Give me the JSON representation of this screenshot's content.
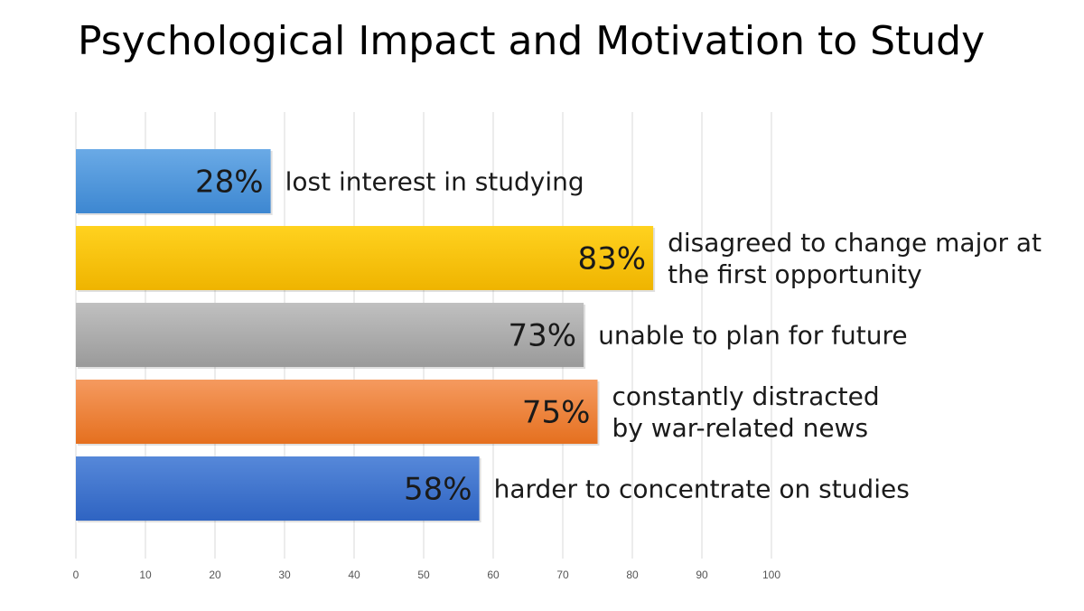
{
  "chart_data": {
    "type": "bar",
    "orientation": "horizontal",
    "title": "Psychological Impact and Motivation to Study",
    "xlim": [
      0,
      100
    ],
    "xticks": [
      0,
      10,
      20,
      30,
      40,
      50,
      60,
      70,
      80,
      90,
      100
    ],
    "grid": true,
    "bars": [
      {
        "value": 28,
        "label": "28%",
        "annotation": [
          "lost interest in studying"
        ],
        "color_top": "#6aaae6",
        "color_bottom": "#3d87d1"
      },
      {
        "value": 83,
        "label": "83%",
        "annotation": [
          "disagreed to change major at",
          "the first opportunity"
        ],
        "color_top": "#ffd21f",
        "color_bottom": "#efb400"
      },
      {
        "value": 73,
        "label": "73%",
        "annotation": [
          "unable to plan for future"
        ],
        "color_top": "#c0c0c0",
        "color_bottom": "#9a9a9a"
      },
      {
        "value": 75,
        "label": "75%",
        "annotation": [
          "constantly distracted",
          "by war-related news"
        ],
        "color_top": "#f59a5f",
        "color_bottom": "#e5701f"
      },
      {
        "value": 58,
        "label": "58%",
        "annotation": [
          "harder to concentrate on studies"
        ],
        "color_top": "#5688d9",
        "color_bottom": "#2f64c2"
      }
    ]
  }
}
